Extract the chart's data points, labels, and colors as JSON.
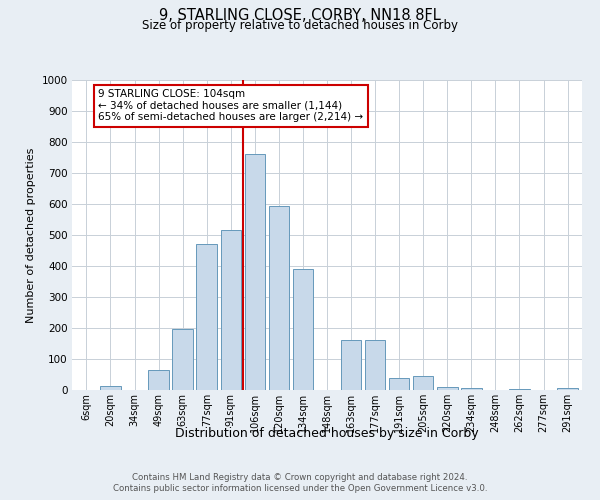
{
  "title": "9, STARLING CLOSE, CORBY, NN18 8FL",
  "subtitle": "Size of property relative to detached houses in Corby",
  "xlabel": "Distribution of detached houses by size in Corby",
  "ylabel": "Number of detached properties",
  "categories": [
    "6sqm",
    "20sqm",
    "34sqm",
    "49sqm",
    "63sqm",
    "77sqm",
    "91sqm",
    "106sqm",
    "120sqm",
    "134sqm",
    "148sqm",
    "163sqm",
    "177sqm",
    "191sqm",
    "205sqm",
    "220sqm",
    "234sqm",
    "248sqm",
    "262sqm",
    "277sqm",
    "291sqm"
  ],
  "values": [
    0,
    13,
    0,
    63,
    197,
    470,
    515,
    760,
    592,
    390,
    0,
    160,
    160,
    40,
    45,
    10,
    7,
    0,
    3,
    0,
    7
  ],
  "bar_color": "#c8d9ea",
  "bar_edge_color": "#6699bb",
  "vline_index": 7,
  "property_line_label": "9 STARLING CLOSE: 104sqm",
  "annotation_line1": "← 34% of detached houses are smaller (1,144)",
  "annotation_line2": "65% of semi-detached houses are larger (2,214) →",
  "annotation_box_color": "#ffffff",
  "annotation_box_edge": "#cc0000",
  "vline_color": "#cc0000",
  "ylim": [
    0,
    1000
  ],
  "yticks": [
    0,
    100,
    200,
    300,
    400,
    500,
    600,
    700,
    800,
    900,
    1000
  ],
  "footer1": "Contains HM Land Registry data © Crown copyright and database right 2024.",
  "footer2": "Contains public sector information licensed under the Open Government Licence v3.0.",
  "outer_bg": "#e8eef4",
  "plot_bg": "#ffffff",
  "grid_color": "#c8d0d8"
}
